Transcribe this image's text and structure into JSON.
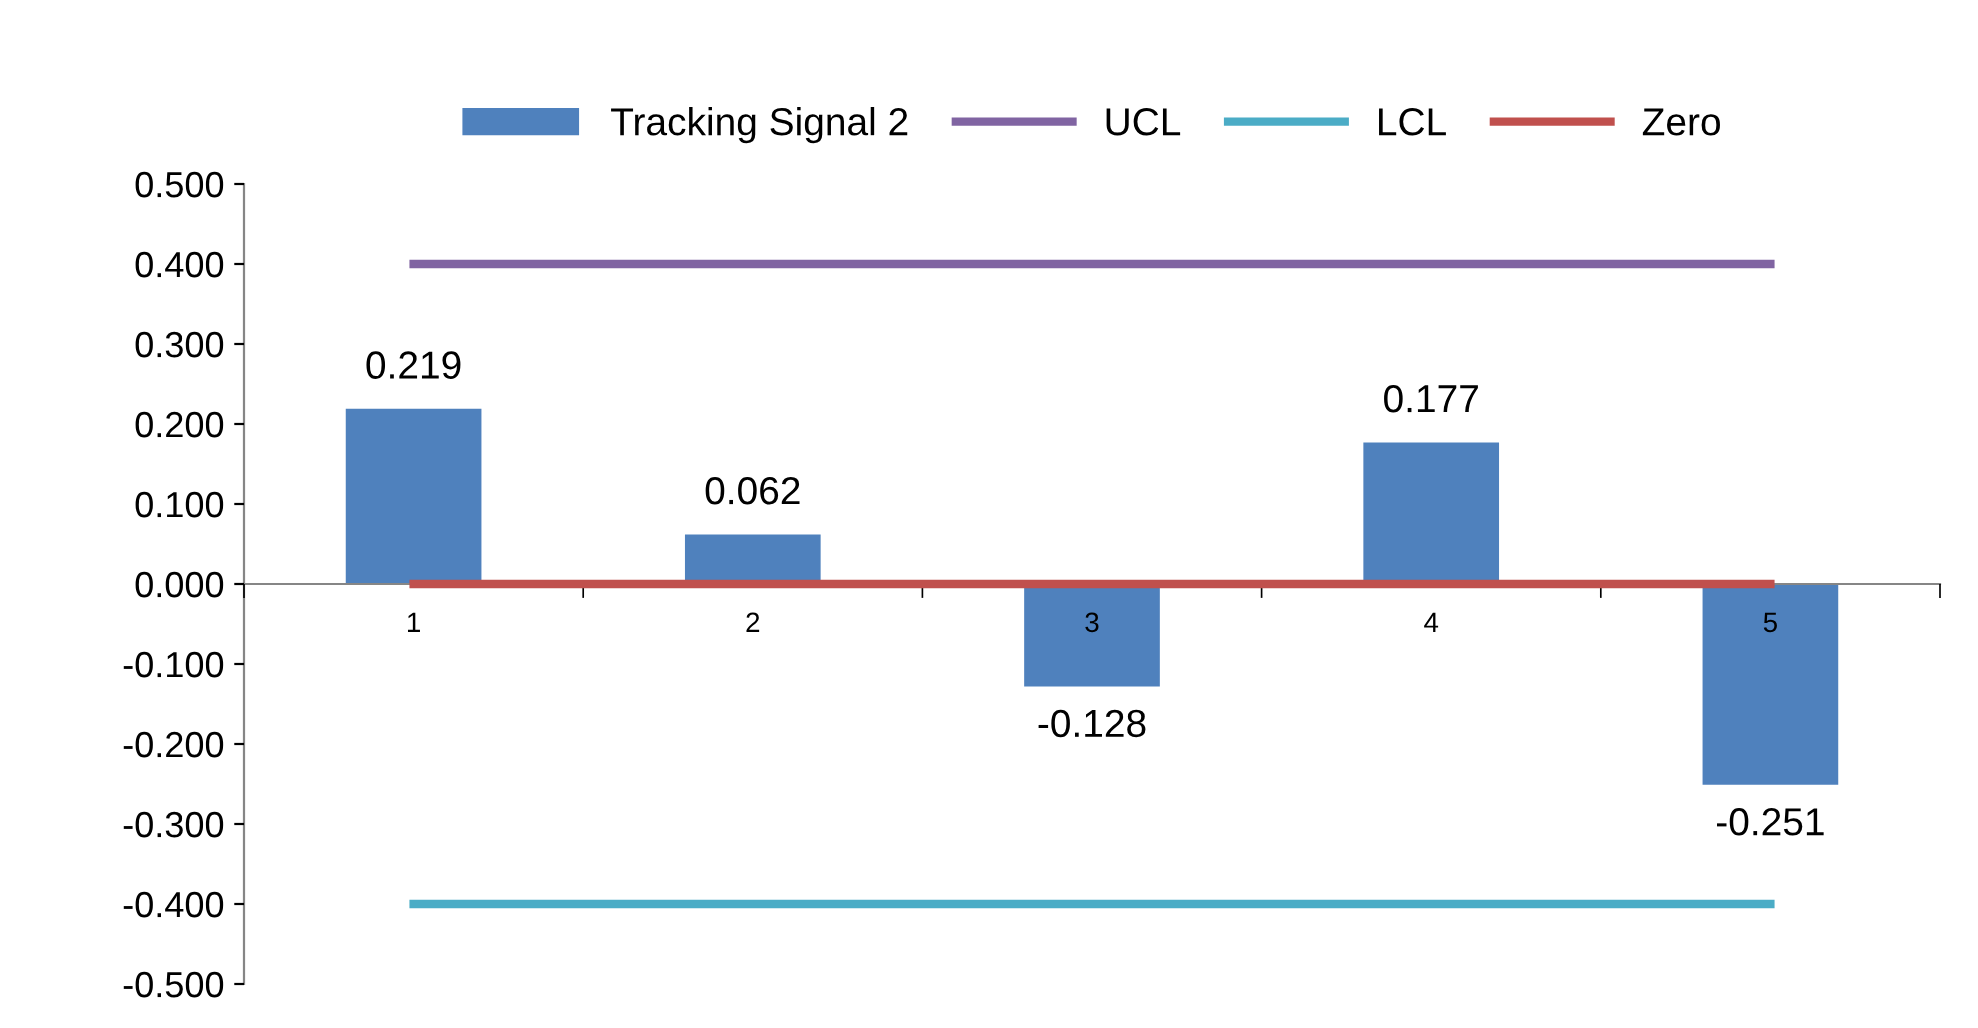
{
  "chart_data": {
    "type": "bar",
    "categories": [
      "1",
      "2",
      "3",
      "4",
      "5"
    ],
    "series": [
      {
        "name": "Tracking Signal 2",
        "color": "#4f81bd",
        "values": [
          0.219,
          0.062,
          -0.128,
          0.177,
          -0.251
        ],
        "data_labels": true
      },
      {
        "name": "UCL",
        "type": "line",
        "color": "#8064a2",
        "values": [
          0.4,
          0.4,
          0.4,
          0.4,
          0.4
        ]
      },
      {
        "name": "LCL",
        "type": "line",
        "color": "#4bacc6",
        "values": [
          -0.4,
          -0.4,
          -0.4,
          -0.4,
          -0.4
        ]
      },
      {
        "name": "Zero",
        "type": "line",
        "color": "#c0504d",
        "values": [
          0,
          0,
          0,
          0,
          0
        ]
      }
    ],
    "ylim": [
      -0.5,
      0.5
    ],
    "yticks": [
      {
        "value": -0.5,
        "label": "-0.500"
      },
      {
        "value": -0.4,
        "label": "-0.400"
      },
      {
        "value": -0.3,
        "label": "-0.300"
      },
      {
        "value": -0.2,
        "label": "-0.200"
      },
      {
        "value": -0.1,
        "label": "-0.100"
      },
      {
        "value": 0,
        "label": "0.000"
      },
      {
        "value": 0.1,
        "label": "0.100"
      },
      {
        "value": 0.2,
        "label": "0.200"
      },
      {
        "value": 0.3,
        "label": "0.300"
      },
      {
        "value": 0.4,
        "label": "0.400"
      },
      {
        "value": 0.5,
        "label": "0.500"
      }
    ],
    "grid": false,
    "legend": "top",
    "marker": "none",
    "line_style": "solid"
  }
}
